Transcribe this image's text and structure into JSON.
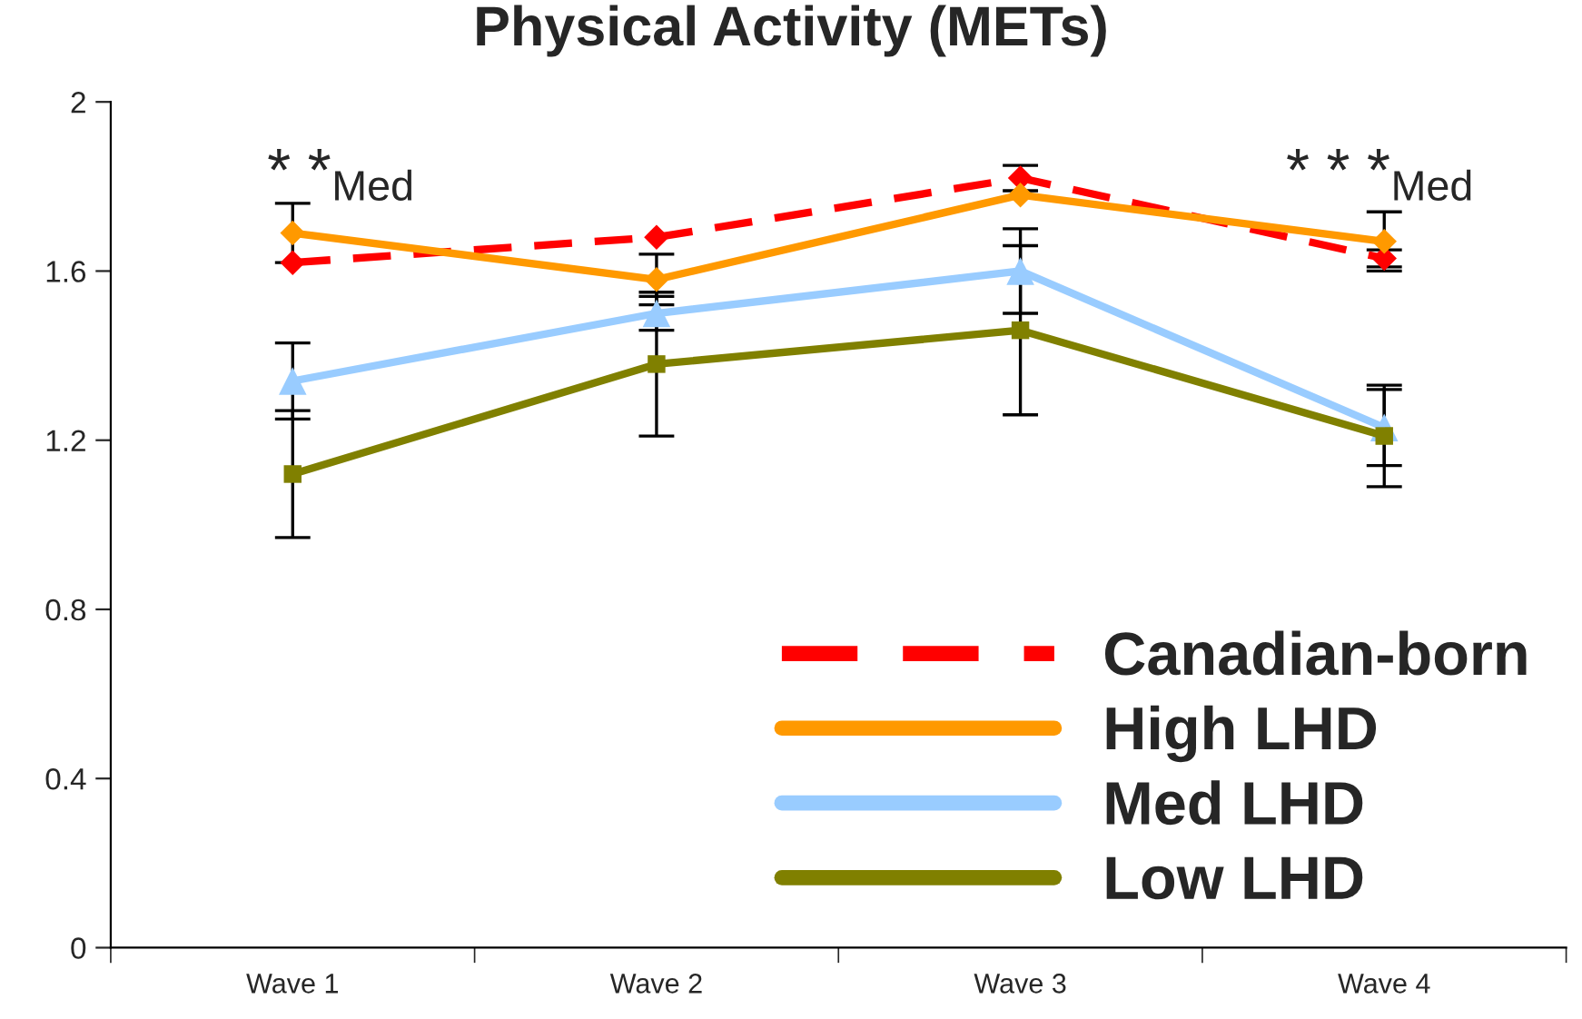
{
  "chart_data": {
    "type": "line",
    "title": "Physical Activity (METs)",
    "categories": [
      "Wave 1",
      "Wave 2",
      "Wave 3",
      "Wave 4"
    ],
    "series": [
      {
        "name": "Canadian-born",
        "color": "#ff0000",
        "marker": "diamond",
        "line_style": "dashed",
        "values": [
          1.62,
          1.68,
          1.82,
          1.63
        ],
        "errors": [
          null,
          null,
          0.03,
          0.02
        ]
      },
      {
        "name": "High LHD",
        "color": "#ff9900",
        "marker": "diamond",
        "line_style": "solid",
        "values": [
          1.69,
          1.58,
          1.78,
          1.67
        ],
        "errors": [
          0.07,
          0.06,
          null,
          0.07
        ]
      },
      {
        "name": "Med LHD",
        "color": "#99ccff",
        "marker": "triangle",
        "line_style": "solid",
        "values": [
          1.34,
          1.5,
          1.6,
          1.23
        ],
        "errors": [
          0.09,
          0.04,
          0.1,
          0.09
        ]
      },
      {
        "name": "Low LHD",
        "color": "#808000",
        "marker": "square",
        "line_style": "solid",
        "values": [
          1.12,
          1.38,
          1.46,
          1.21
        ],
        "errors": [
          0.15,
          0.17,
          0.2,
          0.12
        ]
      }
    ],
    "ylim": [
      0,
      2
    ],
    "yticks": [
      0,
      0.4,
      0.8,
      1.2,
      1.6,
      2
    ],
    "grid": false,
    "legend": "bottom right",
    "annotations": [
      "* *$_{Med}$",
      "* * *$_{Med}$"
    ]
  }
}
